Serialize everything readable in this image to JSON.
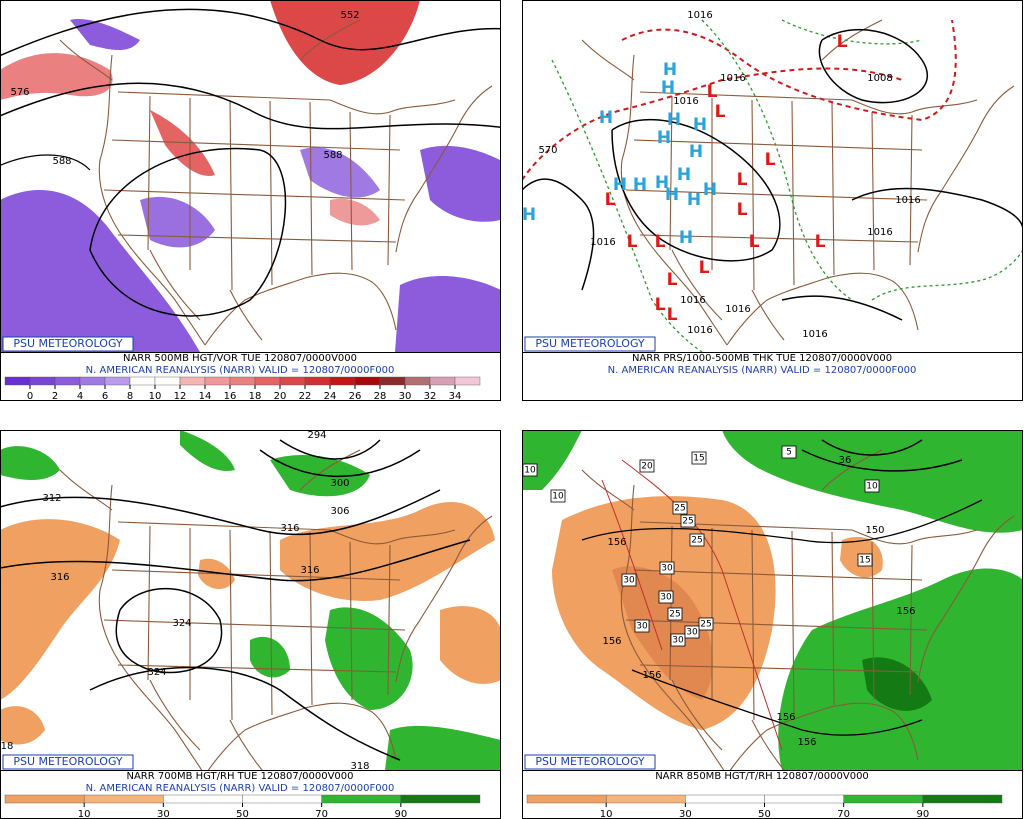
{
  "panels": [
    {
      "logo": "PSU METEOROLOGY",
      "line1": "NARR 500MB HGT/VOR TUE 120807/0000V000",
      "line2": "N. AMERICAN REANALYSIS (NARR) VALID = 120807/0000F000",
      "colorbar": {
        "ticks": [
          0,
          2,
          4,
          6,
          8,
          10,
          12,
          14,
          16,
          18,
          20,
          22,
          24,
          26,
          28,
          30,
          32,
          34
        ],
        "colors": [
          "#6a2fd0",
          "#7a44d6",
          "#8c5cdc",
          "#a07ae2",
          "#b89ce9",
          "#ffffff",
          "#ffffff",
          "#f4b4b4",
          "#ef9a9a",
          "#ea8080",
          "#e46464",
          "#dc4848",
          "#d03030",
          "#c01818",
          "#a80808",
          "#8c2a2a",
          "#b07070",
          "#d8a0b4",
          "#f2c6d6"
        ]
      },
      "contour_labels": [
        "576",
        "588",
        "588",
        "552"
      ]
    },
    {
      "logo": "PSU METEOROLOGY",
      "line1": "NARR PRS/1000-500MB THK TUE 120807/0000V000",
      "line2": "N. AMERICAN REANALYSIS (NARR) VALID = 120807/0000F000",
      "contour_labels": [
        "1016",
        "1016",
        "1016",
        "1008",
        "1016",
        "1016",
        "1016",
        "1016",
        "1016",
        "1016",
        "1016",
        "570"
      ],
      "highs": [
        "H",
        "H",
        "H",
        "H",
        "H",
        "H",
        "H",
        "H",
        "H",
        "H",
        "H",
        "H",
        "H",
        "H",
        "H",
        "H"
      ],
      "lows": [
        "L",
        "L",
        "L",
        "L",
        "L",
        "L",
        "L",
        "L",
        "L",
        "L",
        "L",
        "L",
        "L",
        "L",
        "L"
      ]
    },
    {
      "logo": "PSU METEOROLOGY",
      "line1": "NARR 700MB HGT/RH TUE 120807/0000V000",
      "line2": "N. AMERICAN REANALYSIS (NARR) VALID = 120807/0000F000",
      "colorbar": {
        "ticks": [
          10,
          30,
          50,
          70,
          90
        ],
        "colors": [
          "#f0a060",
          "#f5b47a",
          "#ffffff",
          "#ffffff",
          "#2fb52f",
          "#147a14"
        ]
      },
      "contour_labels": [
        "294",
        "312",
        "316",
        "300",
        "306",
        "316",
        "316",
        "324",
        "324",
        "318",
        "18"
      ]
    },
    {
      "logo": "PSU METEOROLOGY",
      "line1": "NARR 850MB HGT/T/RH 120807/0000V000",
      "colorbar": {
        "ticks": [
          10,
          30,
          50,
          70,
          90
        ],
        "colors": [
          "#f0a060",
          "#f5b47a",
          "#ffffff",
          "#ffffff",
          "#2fb52f",
          "#147a14"
        ]
      },
      "contour_labels": [
        "156",
        "156",
        "156",
        "156",
        "156",
        "150",
        "36",
        "156"
      ],
      "boxed_labels": [
        "15",
        "5",
        "10",
        "10",
        "10",
        "20",
        "25",
        "25",
        "25",
        "30",
        "30",
        "30",
        "25",
        "30",
        "30",
        "25",
        "30",
        "15"
      ]
    }
  ]
}
